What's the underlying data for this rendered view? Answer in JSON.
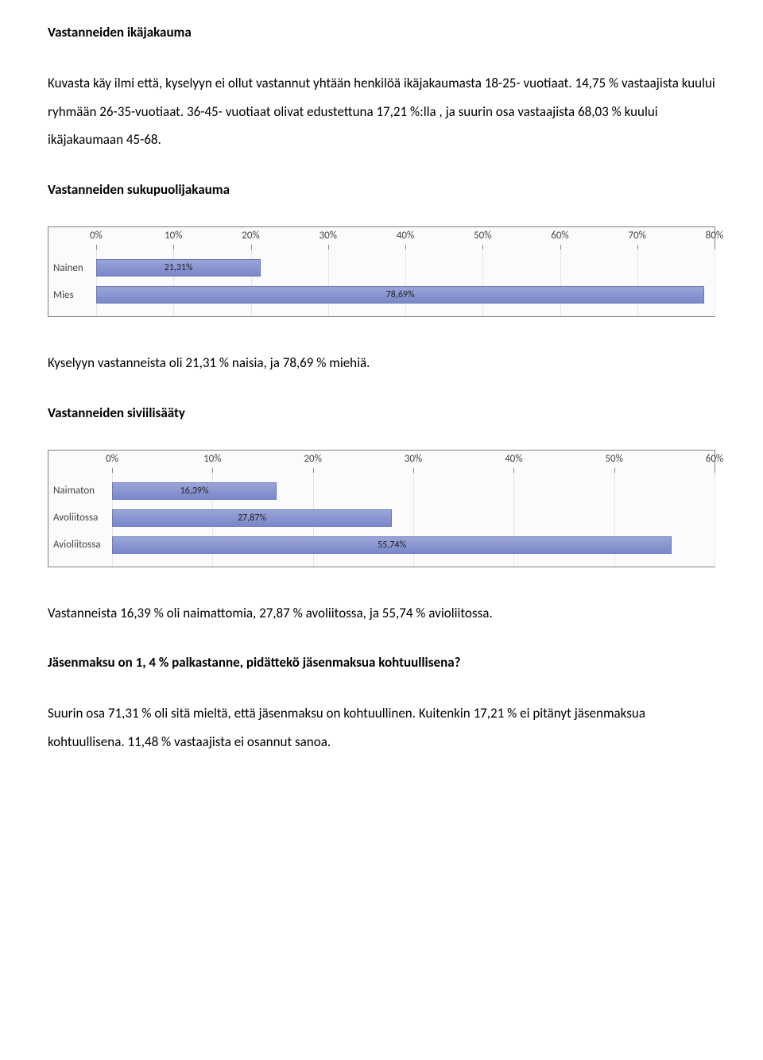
{
  "section1": {
    "heading": "Vastanneiden ikäjakauma",
    "paragraph": "Kuvasta käy ilmi että, kyselyyn ei ollut vastannut yhtään henkilöä ikäjakaumasta 18-25- vuotiaat. 14,75 % vastaajista kuului ryhmään 26-35-vuotiaat. 36-45- vuotiaat olivat edustettuna 17,21 %:lla , ja suurin osa vastaajista 68,03 % kuului ikäjakaumaan 45-68."
  },
  "section2": {
    "heading": "Vastanneiden sukupuolijakauma",
    "chart": {
      "type": "bar-horizontal",
      "background_color": "#fbfbfb",
      "border_color": "#808080",
      "bar_color_top": "#9ba5d8",
      "bar_color_bottom": "#7a87c9",
      "bar_border": "#6b77b8",
      "grid_color": "#e5e5e5",
      "label_color": "#444444",
      "label_fontsize": 13,
      "value_fontsize": 12,
      "y_label_width": 60,
      "xmax": 80,
      "xticks": [
        0,
        10,
        20,
        30,
        40,
        50,
        60,
        70,
        80
      ],
      "xtick_labels": [
        "0%",
        "10%",
        "20%",
        "30%",
        "40%",
        "50%",
        "60%",
        "70%",
        "80%"
      ],
      "categories": [
        "Nainen",
        "Mies"
      ],
      "values": [
        21.31,
        78.69
      ],
      "value_labels": [
        "21,31%",
        "78,69%"
      ]
    },
    "paragraph": "Kyselyyn vastanneista oli 21,31 % naisia, ja 78,69 % miehiä."
  },
  "section3": {
    "heading": "Vastanneiden siviilisääty",
    "chart": {
      "type": "bar-horizontal",
      "background_color": "#fbfbfb",
      "border_color": "#808080",
      "bar_color_top": "#9ba5d8",
      "bar_color_bottom": "#7a87c9",
      "bar_border": "#6b77b8",
      "grid_color": "#e5e5e5",
      "label_color": "#444444",
      "label_fontsize": 13,
      "value_fontsize": 12,
      "y_label_width": 80,
      "xmax": 60,
      "xticks": [
        0,
        10,
        20,
        30,
        40,
        50,
        60
      ],
      "xtick_labels": [
        "0%",
        "10%",
        "20%",
        "30%",
        "40%",
        "50%",
        "60%"
      ],
      "categories": [
        "Naimaton",
        "Avoliitossa",
        "Avioliitossa"
      ],
      "values": [
        16.39,
        27.87,
        55.74
      ],
      "value_labels": [
        "16,39%",
        "27,87%",
        "55,74%"
      ]
    },
    "paragraph": "Vastanneista 16,39 % oli naimattomia, 27,87 % avoliitossa, ja 55,74 % avioliitossa."
  },
  "section4": {
    "heading": "Jäsenmaksu on 1, 4 % palkastanne, pidättekö jäsenmaksua kohtuullisena?",
    "paragraph": "Suurin osa 71,31 % oli sitä mieltä, että jäsenmaksu on kohtuullinen. Kuitenkin 17,21 % ei pitänyt jäsenmaksua kohtuullisena. 11,48 % vastaajista ei osannut sanoa."
  }
}
